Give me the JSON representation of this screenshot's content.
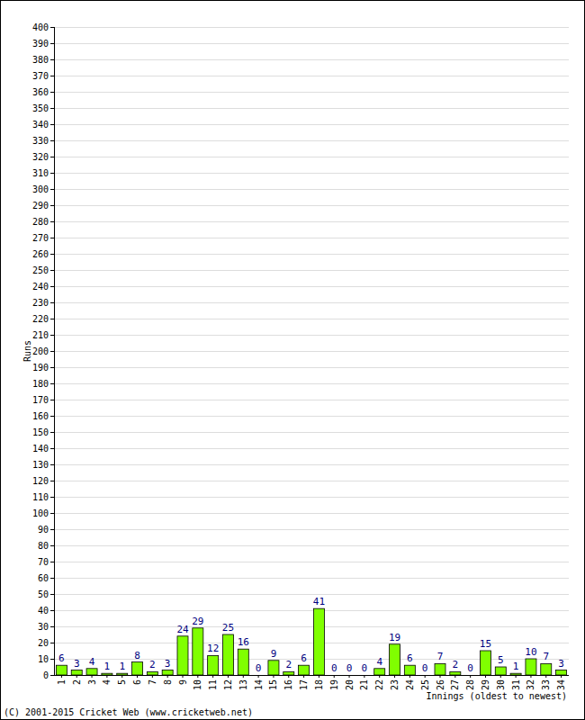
{
  "chart_data": {
    "type": "bar",
    "x_label": "Innings (oldest to newest)",
    "y_label": "Runs",
    "annotations": [
      "(C) 2001-2015 Cricket Web (www.cricketweb.net)"
    ],
    "categories": [
      "1",
      "2",
      "3",
      "4",
      "5",
      "6",
      "7",
      "8",
      "9",
      "10",
      "11",
      "12",
      "13",
      "14",
      "15",
      "16",
      "17",
      "18",
      "19",
      "20",
      "21",
      "22",
      "23",
      "24",
      "25",
      "26",
      "27",
      "28",
      "29",
      "30",
      "31",
      "32",
      "33",
      "34"
    ],
    "values": [
      6,
      3,
      4,
      1,
      1,
      8,
      2,
      3,
      24,
      29,
      12,
      25,
      16,
      0,
      9,
      2,
      6,
      41,
      0,
      0,
      0,
      4,
      19,
      6,
      0,
      7,
      2,
      0,
      15,
      5,
      1,
      10,
      7,
      3
    ],
    "color": "#80ff00",
    "ylim": [
      0,
      400
    ],
    "yticks": [
      0,
      10,
      20,
      30,
      40,
      50,
      60,
      70,
      80,
      90,
      100,
      110,
      120,
      130,
      140,
      150,
      160,
      170,
      180,
      190,
      200,
      210,
      220,
      230,
      240,
      250,
      260,
      270,
      280,
      290,
      300,
      310,
      320,
      330,
      340,
      350,
      360,
      370,
      380,
      390,
      400
    ],
    "grid": true,
    "data_labels": true
  }
}
